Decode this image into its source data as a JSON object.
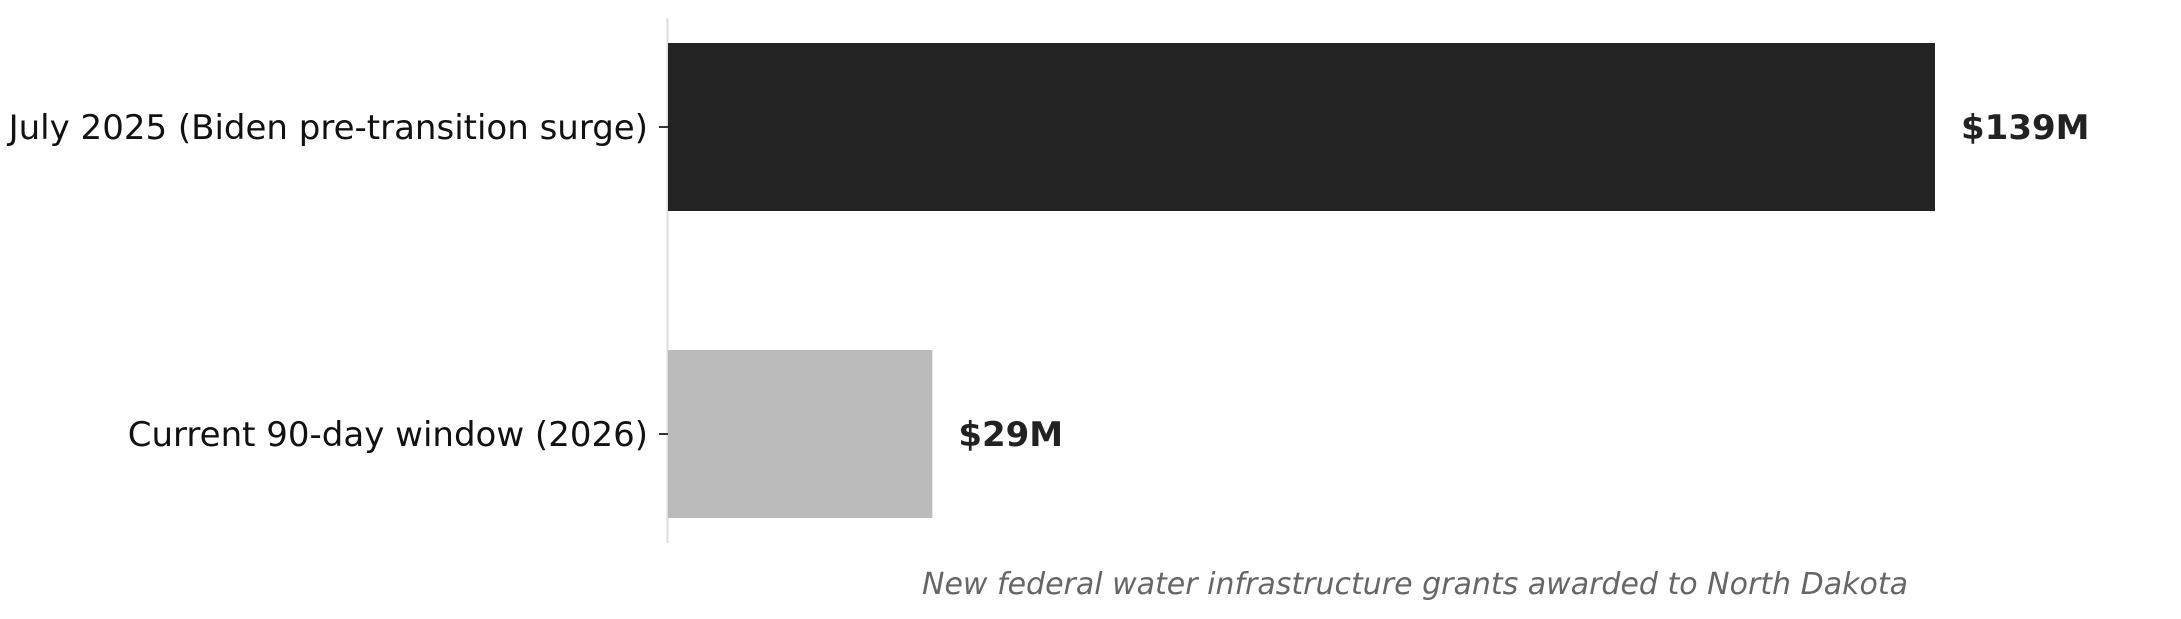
{
  "chart_data": {
    "type": "bar",
    "orientation": "horizontal",
    "categories": [
      "July 2025 (Biden pre-transition surge)",
      "Current 90-day window (2026)"
    ],
    "values": [
      139,
      29
    ],
    "value_labels": [
      "$139M",
      "$29M"
    ],
    "colors": [
      "#232323",
      "#bbbbbb"
    ],
    "title": "",
    "xlabel": "New federal water infrastructure grants awarded to North Dakota",
    "ylabel": "",
    "unit": "$M",
    "xlim": [
      0,
      139
    ],
    "grid": false,
    "legend": "none"
  }
}
